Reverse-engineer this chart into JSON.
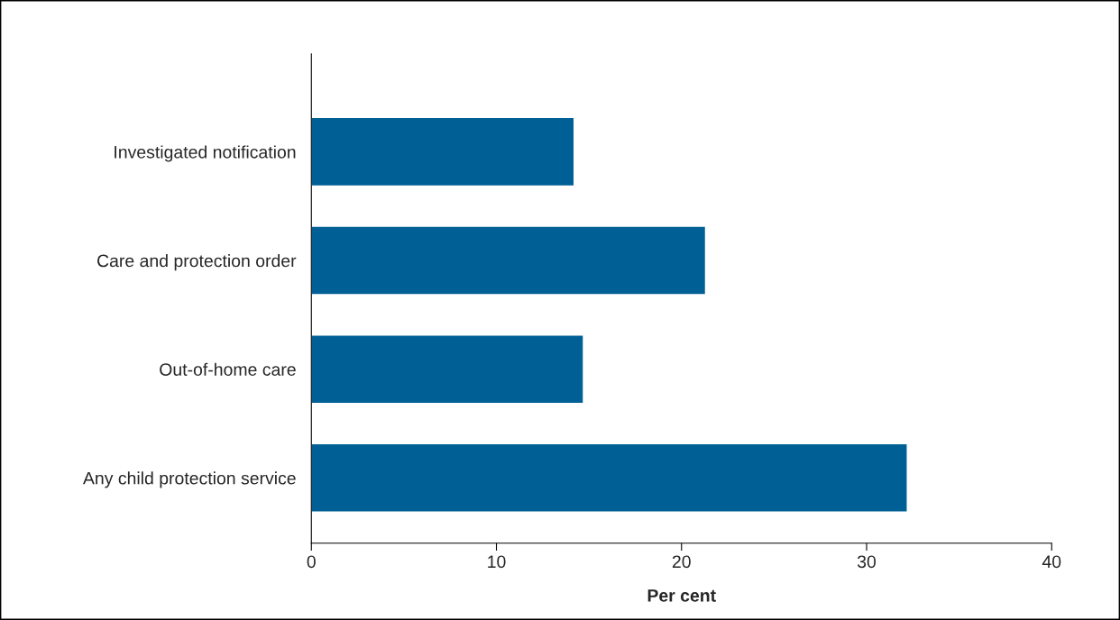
{
  "chart_data": {
    "type": "bar",
    "orientation": "horizontal",
    "xlabel": "Per cent",
    "categories": [
      "Investigated notification",
      "Care and protection order",
      "Out-of-home care",
      "Any child protection service"
    ],
    "values": [
      14.2,
      21.3,
      14.7,
      32.2
    ],
    "color": "#005f95",
    "xlim": [
      0,
      40
    ],
    "xticks": [
      0,
      10,
      20,
      30,
      40
    ],
    "grid": false,
    "legend": false
  }
}
